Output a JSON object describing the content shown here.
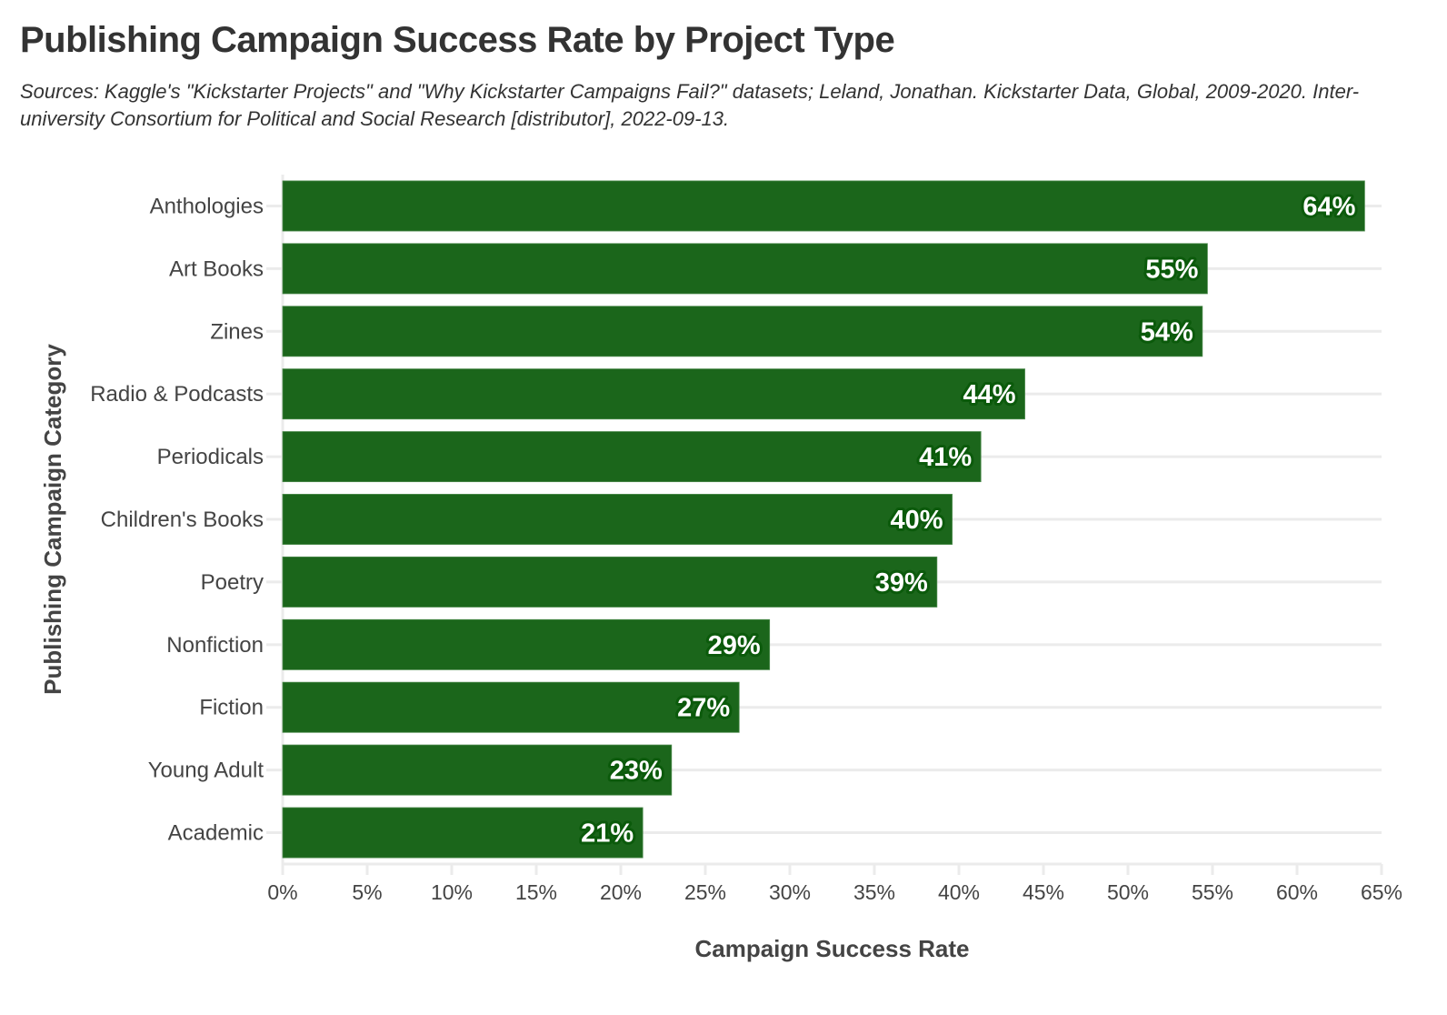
{
  "header": {
    "title": "Publishing Campaign Success Rate by Project Type",
    "subtitle": "Sources: Kaggle's \"Kickstarter Projects\" and \"Why Kickstarter Campaigns Fail?\" datasets; Leland, Jonathan. Kickstarter Data, Global, 2009-2020. Inter-university Consortium for Political and Social Research [distributor], 2022-09-13."
  },
  "colors": {
    "bar": "#1b661b",
    "bar_label_outline": "#0b5a0b",
    "gridline": "#ebebeb",
    "text": "#333333"
  },
  "chart_data": {
    "type": "bar",
    "orientation": "horizontal",
    "title": "Publishing Campaign Success Rate by Project Type",
    "xlabel": "Campaign Success Rate",
    "ylabel": "Publishing Campaign Category",
    "xlim": [
      0,
      65
    ],
    "x_ticks": [
      0,
      5,
      10,
      15,
      20,
      25,
      30,
      35,
      40,
      45,
      50,
      55,
      60,
      65
    ],
    "x_tick_labels": [
      "0%",
      "5%",
      "10%",
      "15%",
      "20%",
      "25%",
      "30%",
      "35%",
      "40%",
      "45%",
      "50%",
      "55%",
      "60%",
      "65%"
    ],
    "grid": true,
    "legend": "none",
    "categories": [
      "Anthologies",
      "Art Books",
      "Zines",
      "Radio & Podcasts",
      "Periodicals",
      "Children's Books",
      "Poetry",
      "Nonfiction",
      "Fiction",
      "Young Adult",
      "Academic"
    ],
    "values": [
      64.0,
      54.7,
      54.4,
      43.9,
      41.3,
      39.6,
      38.7,
      28.8,
      27.0,
      23.0,
      21.3
    ],
    "data_labels": [
      "64%",
      "55%",
      "54%",
      "44%",
      "41%",
      "40%",
      "39%",
      "29%",
      "27%",
      "23%",
      "21%"
    ]
  }
}
